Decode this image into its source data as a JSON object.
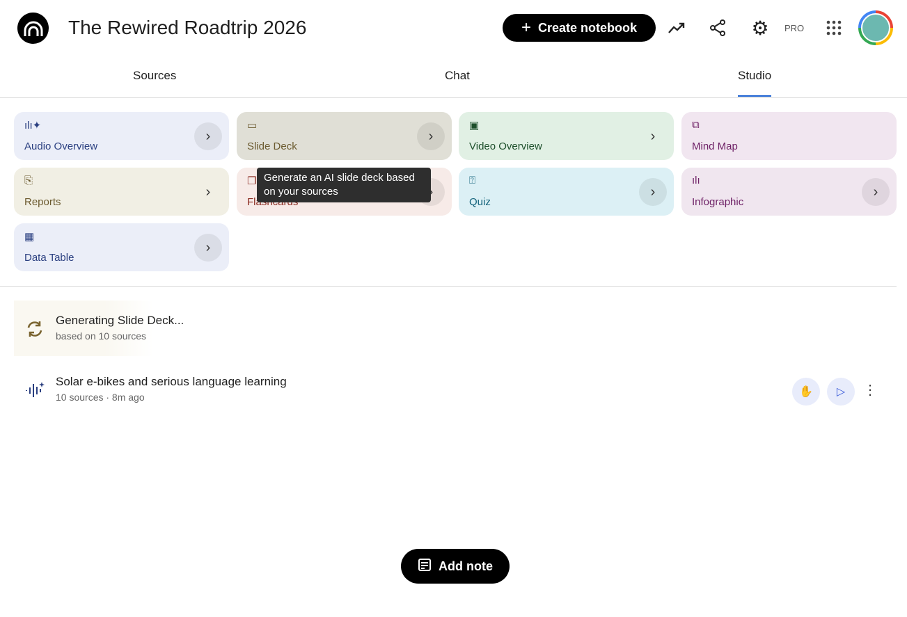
{
  "header": {
    "title": "The Rewired Roadtrip 2026",
    "create_label": "Create notebook",
    "pro_label": "PRO"
  },
  "tabs": [
    {
      "label": "Sources"
    },
    {
      "label": "Chat"
    },
    {
      "label": "Studio",
      "active": true
    }
  ],
  "tiles": [
    {
      "label": "Audio Overview",
      "icon": "audio-waveform-icon",
      "bg": "#ebeef8",
      "color": "#2a3f80"
    },
    {
      "label": "Slide Deck",
      "icon": "slides-icon",
      "bg": "#e0dfd6",
      "color": "#6b5a2f"
    },
    {
      "label": "Video Overview",
      "icon": "video-icon",
      "bg": "#e1f0e4",
      "color": "#1d4f2b"
    },
    {
      "label": "Mind Map",
      "icon": "mind-map-icon",
      "bg": "#f1e6f0",
      "color": "#6e2166"
    },
    {
      "label": "Reports",
      "icon": "reports-icon",
      "bg": "#f1efe4",
      "color": "#6b5a2f"
    },
    {
      "label": "Flashcards",
      "icon": "flashcards-icon",
      "bg": "#f7ebe8",
      "color": "#8a2a20"
    },
    {
      "label": "Quiz",
      "icon": "quiz-icon",
      "bg": "#dcf0f5",
      "color": "#11617a"
    },
    {
      "label": "Infographic",
      "icon": "infographic-icon",
      "bg": "#f0e6ef",
      "color": "#6e2166"
    },
    {
      "label": "Data Table",
      "icon": "table-icon",
      "bg": "#ebeef8",
      "color": "#2a3f80"
    }
  ],
  "tooltip": "Generate an AI slide deck based on your sources",
  "outputs": [
    {
      "title": "Generating Slide Deck...",
      "subtitle": "based on 10 sources",
      "icon": "sync-icon"
    },
    {
      "title": "Solar e-bikes and serious language learning",
      "subtitle": "10 sources · 8m ago",
      "icon": "audio-waveform-icon"
    }
  ],
  "add_note_label": "Add note"
}
